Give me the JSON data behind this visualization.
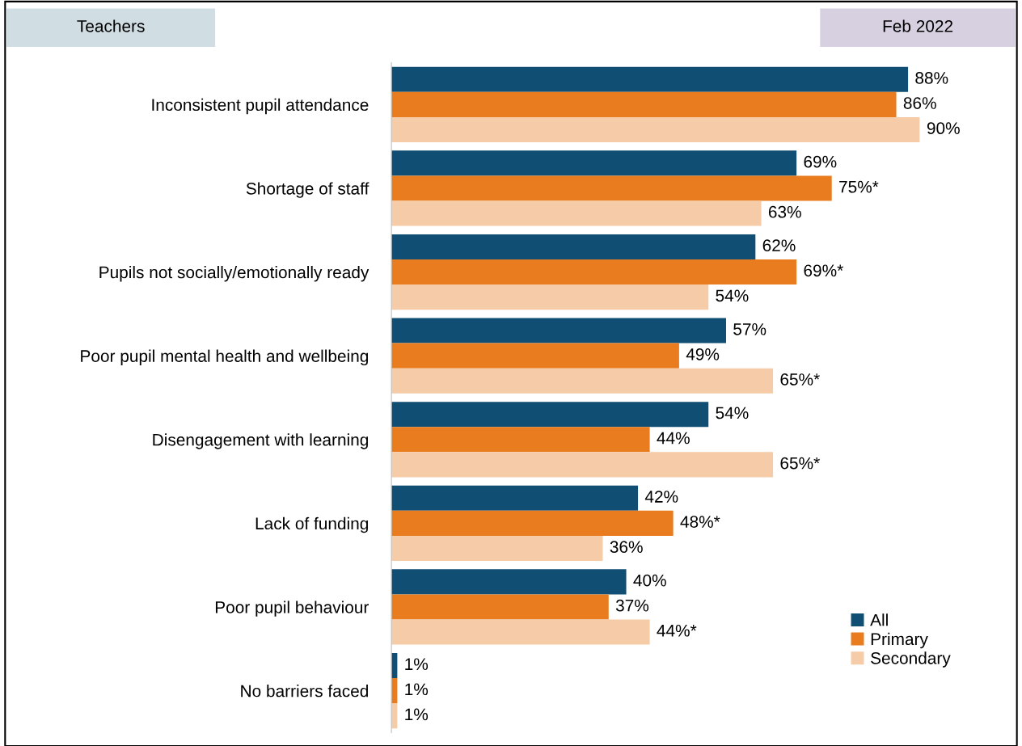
{
  "chart_data": {
    "type": "bar",
    "orientation": "horizontal",
    "categories": [
      "Inconsistent pupil attendance",
      "Shortage of staff",
      "Pupils not socially/emotionally ready",
      "Poor pupil mental health and wellbeing",
      "Disengagement with learning",
      "Lack of funding",
      "Poor pupil behaviour",
      "No barriers faced"
    ],
    "series": [
      {
        "name": "All",
        "color": "#114e73",
        "values": [
          88,
          69,
          62,
          57,
          54,
          42,
          40,
          1
        ],
        "value_labels": [
          "88%",
          "69%",
          "62%",
          "57%",
          "54%",
          "42%",
          "40%",
          "1%"
        ]
      },
      {
        "name": "Primary",
        "color": "#e87c1e",
        "values": [
          86,
          75,
          69,
          49,
          44,
          48,
          37,
          1
        ],
        "value_labels": [
          "86%",
          "75%*",
          "69%*",
          "49%",
          "44%",
          "48%*",
          "37%",
          "1%"
        ]
      },
      {
        "name": "Secondary",
        "color": "#f6cba7",
        "values": [
          90,
          63,
          54,
          65,
          65,
          36,
          44,
          1
        ],
        "value_labels": [
          "90%",
          "63%",
          "54%",
          "65%*",
          "65%*",
          "36%",
          "44%*",
          "1%"
        ]
      }
    ],
    "tick_labels": "y",
    "legend": "bottom right",
    "grid": false,
    "annotations": [
      "Teachers",
      "Feb 2022"
    ]
  }
}
